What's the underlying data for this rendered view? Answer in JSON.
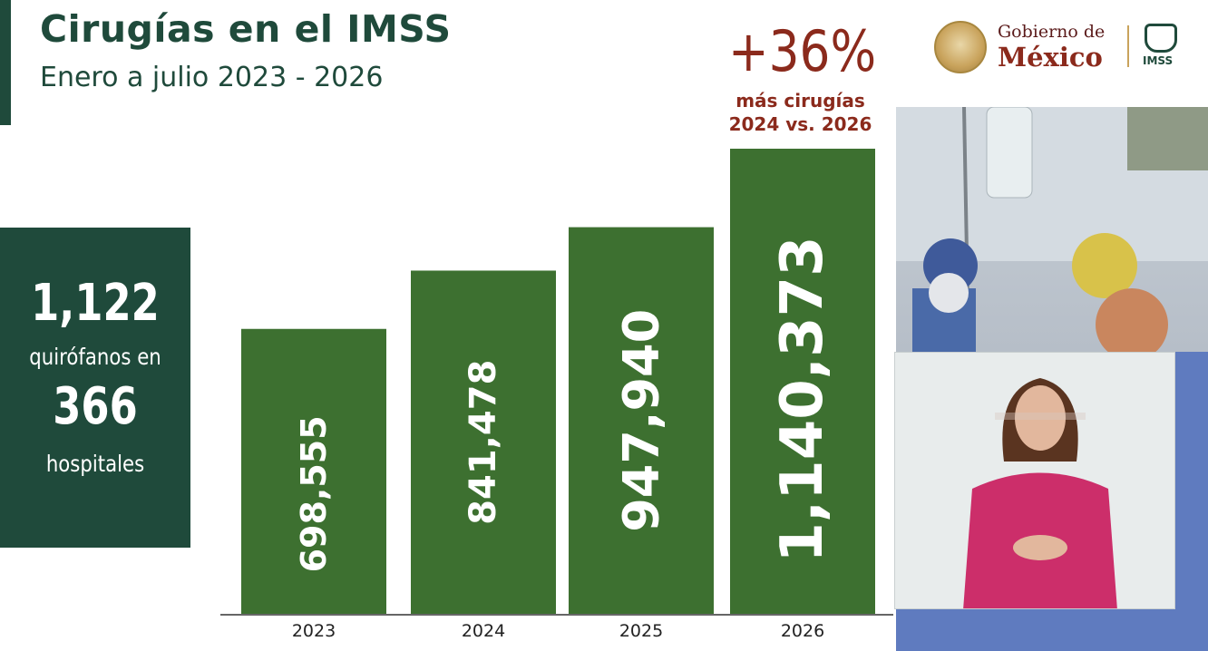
{
  "slide": {
    "title": "Cirugías en el IMSS",
    "subtitle": "Enero a julio 2023 - 2026",
    "accent_color": "#1f4a3b",
    "bar_color": "#3d7030",
    "highlight_color": "#8b2a1c"
  },
  "stat_box": {
    "number_1": "1,122",
    "label_1": "quirófanos en",
    "number_2": "366",
    "label_2": "hospitales"
  },
  "headline": {
    "percent": "+36%",
    "line1": "más cirugías",
    "line2": "2024 vs. 2026"
  },
  "logo": {
    "line1": "Gobierno de",
    "line2": "México",
    "imss": "IMSS"
  },
  "chart_data": {
    "type": "bar",
    "categories": [
      "2023",
      "2024",
      "2025",
      "2026"
    ],
    "values": [
      698555,
      841478,
      947940,
      1140373
    ],
    "data_labels": [
      "698,555",
      "841,478",
      "947,940",
      "1,140,373"
    ],
    "title": "Cirugías en el IMSS",
    "subtitle": "Enero a julio 2023 - 2026",
    "xlabel": "",
    "ylabel": "",
    "grid": false,
    "legend": false
  }
}
